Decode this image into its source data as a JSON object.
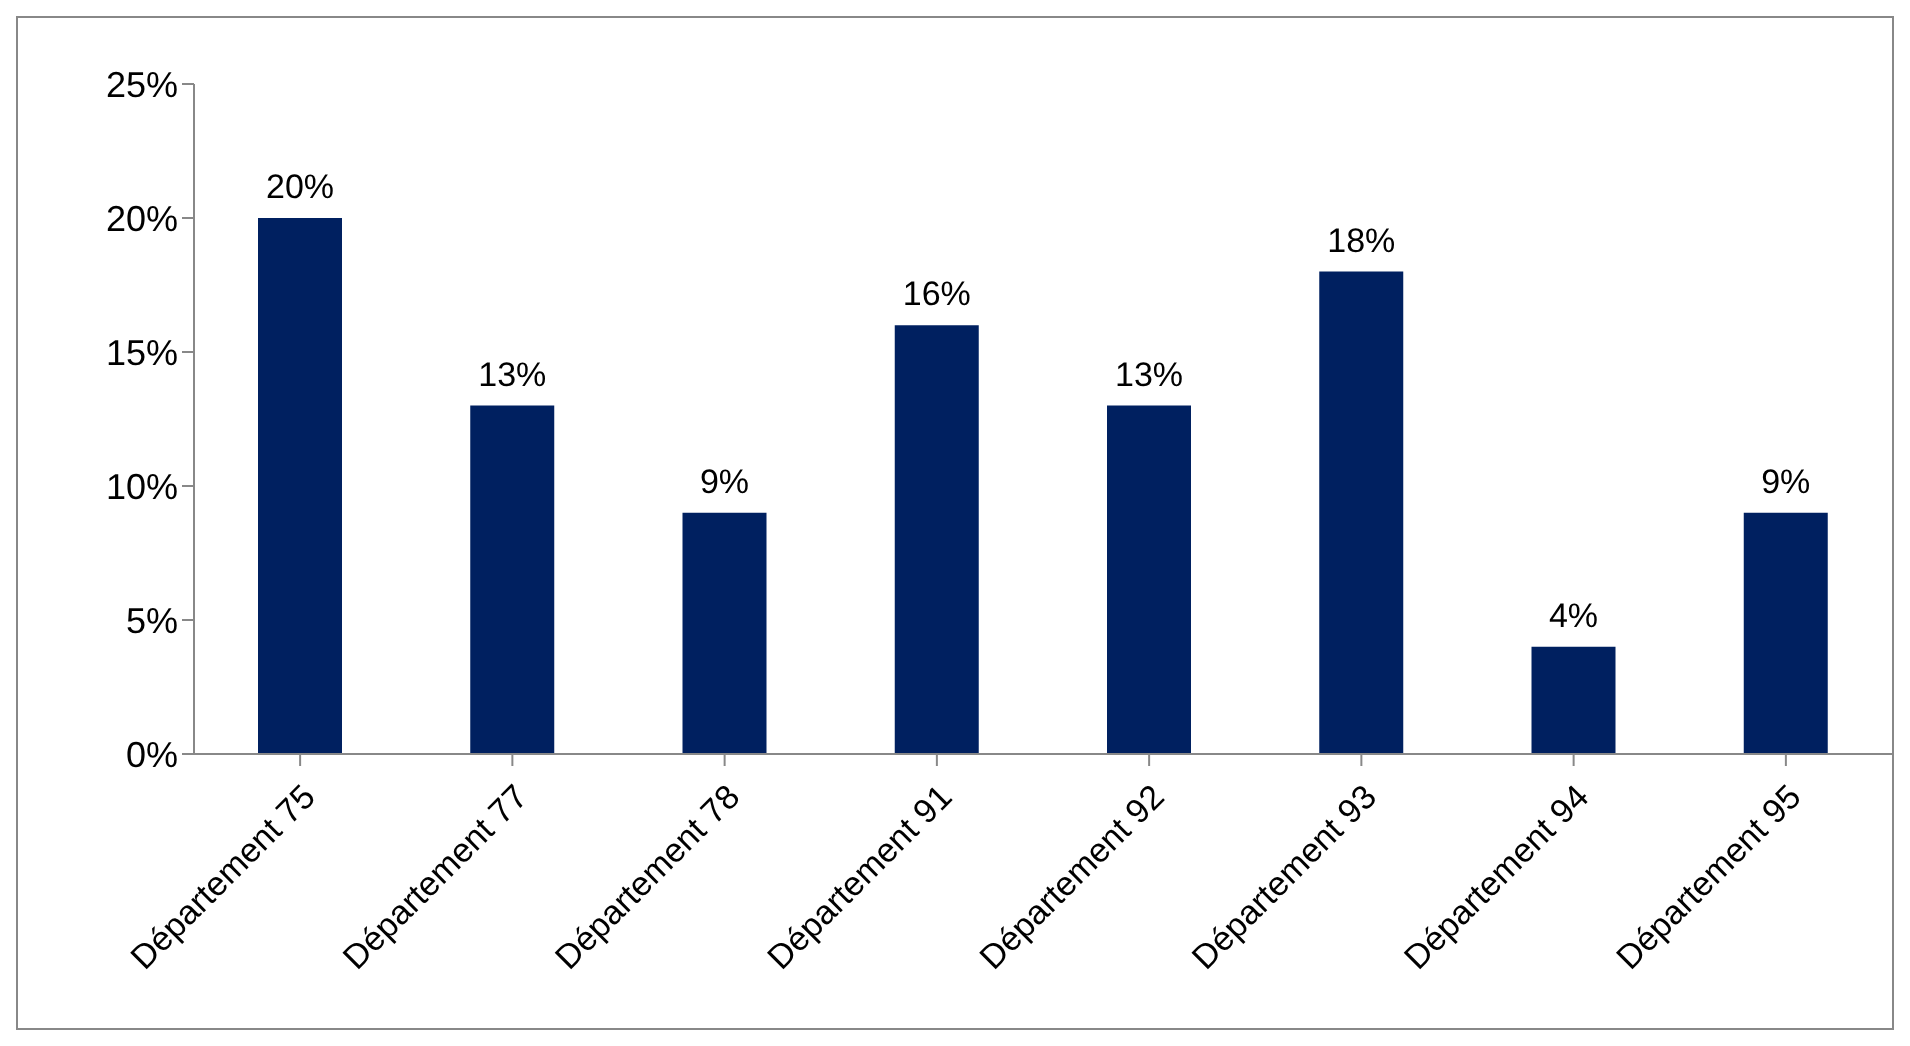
{
  "chart_data": {
    "type": "bar",
    "categories": [
      "Département 75",
      "Département 77",
      "Département 78",
      "Département 91",
      "Département 92",
      "Département 93",
      "Département 94",
      "Département 95"
    ],
    "values": [
      20,
      13,
      9,
      16,
      13,
      18,
      4,
      9
    ],
    "value_labels": [
      "20%",
      "13%",
      "9%",
      "16%",
      "13%",
      "18%",
      "4%",
      "9%"
    ],
    "color": "#002060",
    "ylim": [
      0,
      25
    ],
    "yticks": [
      {
        "value": 0,
        "label": "0%"
      },
      {
        "value": 5,
        "label": "5%"
      },
      {
        "value": 10,
        "label": "10%"
      },
      {
        "value": 15,
        "label": "15%"
      },
      {
        "value": 20,
        "label": "20%"
      },
      {
        "value": 25,
        "label": "25%"
      }
    ],
    "grid": false,
    "legend": false
  }
}
